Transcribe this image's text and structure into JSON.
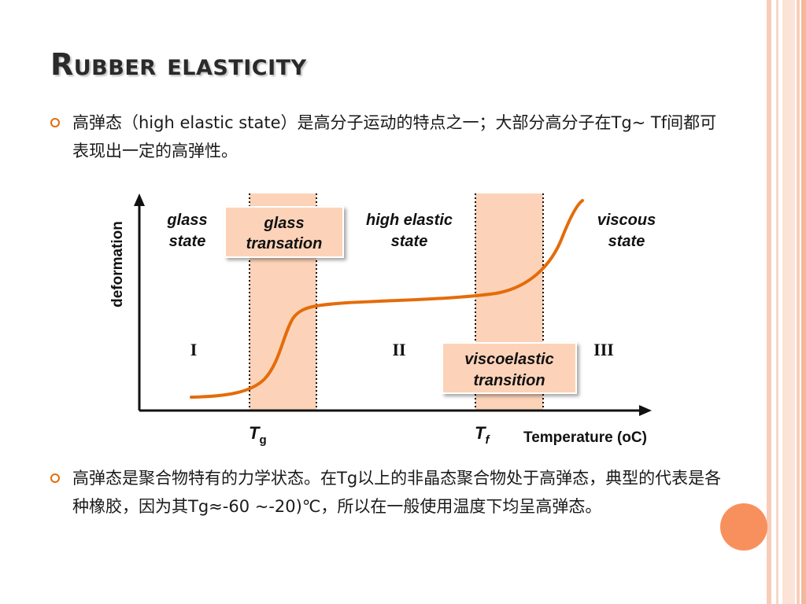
{
  "title": "Rubber elasticity",
  "bullets": [
    {
      "text": "高弹态（high elastic state）是高分子运动的特点之一；大部分高分子在Tg~ Tf间都可表现出一定的高弹性。"
    },
    {
      "text": "高弹态是聚合物特有的力学状态。在Tg以上的非晶态聚合物处于高弹态，典型的代表是各种橡胶，因为其Tg≈-60 ~-20)℃，所以在一般使用温度下均呈高弹态。"
    }
  ],
  "diagram": {
    "y_axis_label": "deformation",
    "x_axis_label": "Temperature (oC)",
    "regions": {
      "glass_state_line1": "glass",
      "glass_state_line2": "state",
      "high_elastic_line1": "high elastic",
      "high_elastic_line2": "state",
      "viscous_line1": "viscous",
      "viscous_line2": "state"
    },
    "boxes": {
      "glass_transition_line1": "glass",
      "glass_transition_line2": "transation",
      "viscoelastic_line1": "viscoelastic",
      "viscoelastic_line2": "transition"
    },
    "region_numerals": [
      "I",
      "II",
      "III"
    ],
    "tg_symbol": "T",
    "tg_subscript": "g",
    "tf_symbol": "T",
    "tf_subscript": "f",
    "colors": {
      "band": "#fcd3b8",
      "curve": "#e46c0a",
      "accent": "#e46c0a",
      "circle": "#f8905e"
    }
  }
}
